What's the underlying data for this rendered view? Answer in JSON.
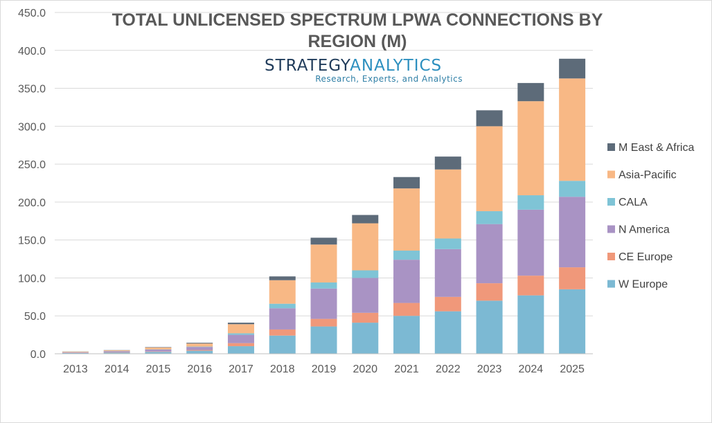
{
  "title_lines": [
    "TOTAL UNLICENSED SPECTRUM LPWA CONNECTIONS BY",
    "REGION (M)"
  ],
  "logo": {
    "name_part1": "STRATEGY",
    "name_part2": "ANALYTICS",
    "tagline": "Research, Experts, and Analytics",
    "color1": "#1f3b5a",
    "color2": "#2c8fbf"
  },
  "chart_data": {
    "type": "bar",
    "stacked": true,
    "title": "TOTAL UNLICENSED SPECTRUM LPWA CONNECTIONS BY REGION (M)",
    "xlabel": "",
    "ylabel": "",
    "ylim": [
      0,
      450
    ],
    "yticks": [
      0,
      50,
      100,
      150,
      200,
      250,
      300,
      350,
      400,
      450
    ],
    "ytick_labels": [
      "0.0",
      "50.0",
      "100.0",
      "150.0",
      "200.0",
      "250.0",
      "300.0",
      "350.0",
      "400.0",
      "450.0"
    ],
    "grid": true,
    "legend_position": "right",
    "categories": [
      "2013",
      "2014",
      "2015",
      "2016",
      "2017",
      "2018",
      "2019",
      "2020",
      "2021",
      "2022",
      "2023",
      "2024",
      "2025"
    ],
    "series": [
      {
        "name": "W Europe",
        "color": "#7cb9d3",
        "values": [
          1,
          1.5,
          2.5,
          4,
          10,
          24,
          36,
          41,
          50,
          56,
          70,
          77,
          85
        ]
      },
      {
        "name": "CE Europe",
        "color": "#f0987a",
        "values": [
          0.2,
          0.3,
          0.5,
          1,
          4,
          8,
          10,
          13,
          17,
          19,
          23,
          26,
          29
        ]
      },
      {
        "name": "N America",
        "color": "#a993c4",
        "values": [
          0.8,
          1.5,
          2.5,
          4,
          11,
          28,
          40,
          46,
          57,
          63,
          78,
          87,
          93
        ]
      },
      {
        "name": "CALA",
        "color": "#7fc4d6",
        "values": [
          0.1,
          0.2,
          0.3,
          0.5,
          2,
          6,
          8,
          10,
          12,
          14,
          17,
          19,
          21
        ]
      },
      {
        "name": "Asia-Pacific",
        "color": "#f8b885",
        "values": [
          0.7,
          1,
          2.5,
          4,
          12,
          31,
          50,
          62,
          82,
          91,
          112,
          124,
          135
        ]
      },
      {
        "name": "M East & Africa",
        "color": "#5d6b79",
        "values": [
          0.2,
          0.3,
          0.5,
          1,
          2,
          5,
          9,
          11,
          15,
          17,
          21,
          24,
          26
        ]
      }
    ]
  }
}
